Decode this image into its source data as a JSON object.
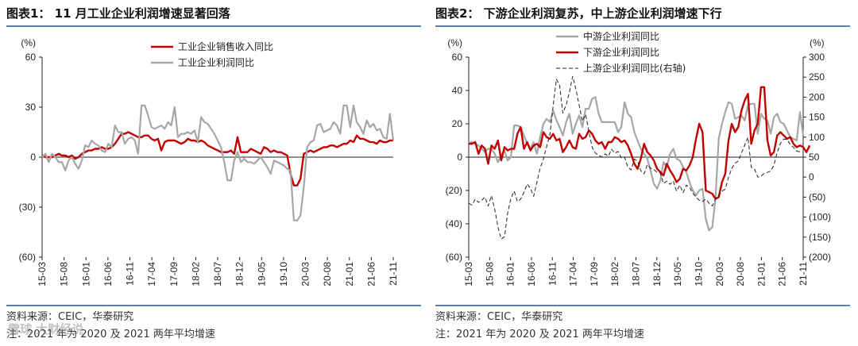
{
  "panels": [
    {
      "title": "图表1： 11 月工业企业利润增速显著回落",
      "source": "资料来源：CEIC，华泰研究",
      "footnote": "注：2021 年为 2020 及 2021 两年平均增速"
    },
    {
      "title": "图表2： 下游企业利润复苏，中上游企业利润增速下行",
      "source": "资料来源：CEIC，华泰研究",
      "footnote": "注：2021 年为 2020 及 2021 两年平均增速"
    }
  ],
  "watermark": "雪球 大财经说",
  "colors": {
    "red": "#c00000",
    "gray": "#a6a6a6",
    "black": "#222222",
    "rule": "#5b7fa6"
  },
  "chart_data": [
    {
      "type": "line",
      "x_ticks": [
        "15-03",
        "15-08",
        "16-01",
        "16-06",
        "16-11",
        "17-04",
        "17-09",
        "18-02",
        "18-07",
        "18-12",
        "19-05",
        "19-10",
        "20-03",
        "20-08",
        "21-01",
        "21-06",
        "21-11"
      ],
      "y_ticks": [
        "60",
        "30",
        "0",
        "(30)",
        "(60)"
      ],
      "ylabel": "(%)",
      "ylim": [
        -60,
        60
      ],
      "legend_position": "top-center",
      "series": [
        {
          "name": "工业企业销售收入同比",
          "color": "#c00000",
          "values": [
            1,
            0,
            0,
            0,
            1,
            2,
            1,
            1,
            0,
            1,
            -1,
            0,
            2,
            3,
            4,
            4,
            5,
            5,
            6,
            5,
            5,
            6,
            8,
            11,
            14,
            14,
            15,
            14,
            13,
            12,
            12,
            13,
            13,
            11,
            10,
            11,
            4,
            9,
            10,
            10,
            10,
            9,
            8,
            9,
            11,
            10,
            10,
            9,
            10,
            9,
            7,
            6,
            5,
            4,
            3,
            3,
            3,
            4,
            2,
            12,
            3,
            3,
            3,
            5,
            4,
            3,
            2,
            6,
            5,
            3,
            4,
            3,
            3,
            2,
            1,
            -10,
            -17,
            -17,
            -13,
            2,
            3,
            4,
            3,
            4,
            5,
            6,
            6,
            7,
            7,
            6,
            7,
            8,
            8,
            10,
            9,
            13,
            11,
            11,
            10,
            9,
            9,
            8,
            10,
            9,
            9,
            10,
            10
          ]
        },
        {
          "name": "工业企业利润同比",
          "color": "#a6a6a6",
          "values": [
            0,
            2,
            -3,
            2,
            0,
            -3,
            -3,
            -8,
            -2,
            0,
            -4,
            -7,
            -2,
            7,
            6,
            10,
            8,
            7,
            4,
            3,
            8,
            6,
            19,
            15,
            15,
            8,
            11,
            12,
            10,
            2,
            31,
            31,
            25,
            18,
            17,
            18,
            19,
            17,
            21,
            19,
            30,
            12,
            14,
            14,
            15,
            14,
            16,
            9,
            24,
            21,
            20,
            17,
            14,
            10,
            6,
            -3,
            -14,
            -14,
            -2,
            3,
            -3,
            -1,
            -3,
            -3,
            -4,
            -2,
            0,
            -3,
            -6,
            -10,
            -2,
            -3,
            -4,
            -5,
            -7,
            -8,
            -38,
            -38,
            -35,
            -18,
            6,
            9,
            10,
            19,
            20,
            15,
            16,
            17,
            21,
            19,
            14,
            31,
            31,
            18,
            31,
            21,
            18,
            14,
            22,
            18,
            20,
            16,
            17,
            12,
            11,
            26,
            10
          ]
        }
      ]
    },
    {
      "type": "line",
      "x_ticks": [
        "15-03",
        "15-08",
        "16-01",
        "16-06",
        "16-11",
        "17-04",
        "17-09",
        "18-02",
        "18-07",
        "18-12",
        "19-05",
        "19-10",
        "20-03",
        "20-08",
        "21-01",
        "21-06",
        "21-11"
      ],
      "y_ticks_left": [
        "60",
        "40",
        "20",
        "0",
        "(20)",
        "(40)",
        "(60)"
      ],
      "y_ticks_right": [
        "300",
        "250",
        "200",
        "150",
        "100",
        "50",
        "0",
        "(50)",
        "(100)",
        "(150)",
        "(200)"
      ],
      "ylabel_left": "(%)",
      "ylabel_right": "(%)",
      "ylim_left": [
        -60,
        60
      ],
      "ylim_right": [
        -200,
        300
      ],
      "legend_position": "top-left",
      "series": [
        {
          "name": "中游企业利润同比",
          "axis": "left",
          "color": "#a6a6a6",
          "values": [
            9,
            9,
            8,
            7,
            5,
            3,
            5,
            5,
            2,
            -3,
            1,
            4,
            -2,
            0,
            19,
            19,
            18,
            13,
            8,
            5,
            9,
            2,
            12,
            20,
            23,
            21,
            28,
            22,
            18,
            13,
            21,
            26,
            14,
            20,
            25,
            18,
            29,
            29,
            35,
            36,
            26,
            21,
            21,
            21,
            21,
            21,
            15,
            18,
            33,
            26,
            24,
            15,
            10,
            5,
            2,
            -1,
            -8,
            -16,
            -19,
            -14,
            -3,
            -6,
            2,
            5,
            -1,
            -2,
            -6,
            -9,
            -15,
            -20,
            -23,
            -20,
            -19,
            -37,
            -44,
            -42,
            -25,
            11,
            20,
            27,
            33,
            32,
            23,
            24,
            25,
            22,
            31,
            32,
            32,
            14,
            26,
            23,
            22,
            14,
            24,
            26,
            21,
            20,
            16,
            12,
            11,
            10,
            27,
            13
          ]
        },
        {
          "name": "下游企业利润同比",
          "axis": "left",
          "color": "#c00000",
          "values": [
            8,
            8,
            9,
            2,
            7,
            5,
            -4,
            7,
            5,
            10,
            -2,
            6,
            4,
            5,
            5,
            14,
            18,
            5,
            9,
            4,
            7,
            8,
            6,
            15,
            12,
            11,
            14,
            10,
            11,
            3,
            6,
            10,
            6,
            5,
            14,
            11,
            12,
            16,
            14,
            10,
            8,
            9,
            5,
            9,
            9,
            12,
            11,
            9,
            10,
            7,
            2,
            -4,
            -7,
            -1,
            8,
            3,
            1,
            -2,
            -7,
            -9,
            -11,
            -4,
            -8,
            -11,
            -15,
            -13,
            -7,
            -8,
            -5,
            0,
            11,
            20,
            15,
            -20,
            -21,
            -22,
            -25,
            -24,
            -15,
            -10,
            10,
            20,
            15,
            18,
            28,
            34,
            38,
            8,
            16,
            20,
            42,
            42,
            10,
            1,
            3,
            13,
            15,
            13,
            11,
            12,
            8,
            6,
            7,
            6,
            3,
            7
          ]
        },
        {
          "name": "上游企业利润同比(右轴)",
          "axis": "right",
          "color": "#222222",
          "dashed": true,
          "values": [
            -65,
            -70,
            -55,
            -63,
            -58,
            -50,
            -72,
            -46,
            -80,
            -125,
            -155,
            -149,
            -90,
            -53,
            -35,
            -61,
            -55,
            -38,
            -17,
            -28,
            -48,
            -13,
            22,
            45,
            77,
            106,
            179,
            245,
            229,
            160,
            180,
            212,
            252,
            220,
            180,
            140,
            157,
            115,
            75,
            60,
            55,
            50,
            58,
            52,
            70,
            60,
            64,
            48,
            50,
            25,
            18,
            45,
            40,
            16,
            8,
            31,
            22,
            19,
            12,
            10,
            -16,
            -10,
            -18,
            -10,
            -35,
            -20,
            -39,
            -20,
            -25,
            -40,
            -50,
            -58,
            -61,
            -55,
            -65,
            -72,
            -55,
            -45,
            -35,
            -30,
            0,
            22,
            35,
            40,
            60,
            80,
            100,
            25,
            20,
            0,
            2,
            10,
            12,
            15,
            30,
            62,
            85,
            95,
            94,
            82,
            75,
            65,
            63
          ]
        }
      ]
    }
  ]
}
